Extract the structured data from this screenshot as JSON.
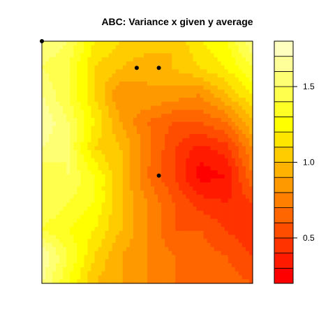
{
  "chart_data": {
    "type": "heatmap",
    "title": "ABC: Variance x given y average",
    "xlabel": "",
    "ylabel": "",
    "axes_labels_shown": false,
    "color_scale": {
      "palette": "heat (red to light yellow)",
      "range": [
        0.2,
        1.8
      ],
      "levels": [
        0.2,
        0.3,
        0.4,
        0.5,
        0.6,
        0.7,
        0.8,
        0.9,
        1.0,
        1.1,
        1.2,
        1.3,
        1.4,
        1.5,
        1.6,
        1.7,
        1.8
      ],
      "colors": [
        "#ff0000",
        "#ff1a00",
        "#ff3300",
        "#ff4d00",
        "#ff6600",
        "#ff8000",
        "#ff9900",
        "#ffb300",
        "#ffcc00",
        "#ffe600",
        "#ffff00",
        "#ffff26",
        "#ffff4d",
        "#ffff73",
        "#ffff99",
        "#ffffbf"
      ],
      "tick_labels": [
        "0.5",
        "1.0",
        "1.5"
      ],
      "tick_values": [
        0.5,
        1.0,
        1.5
      ]
    },
    "grid": {
      "rows_top_to_bottom": [
        [
          1.6,
          1.5,
          1.2,
          1.1,
          1.1,
          1.0,
          1.2,
          1.3,
          1.6
        ],
        [
          1.5,
          1.4,
          1.1,
          1.0,
          0.9,
          1.0,
          1.1,
          1.2,
          1.4
        ],
        [
          1.6,
          1.4,
          1.1,
          0.8,
          0.9,
          0.85,
          0.8,
          1.0,
          1.2
        ],
        [
          1.7,
          1.5,
          1.2,
          0.9,
          0.7,
          0.6,
          0.6,
          0.7,
          1.0
        ],
        [
          1.6,
          1.5,
          1.1,
          1.0,
          0.75,
          0.5,
          0.35,
          0.45,
          0.8
        ],
        [
          1.4,
          1.5,
          1.3,
          1.0,
          0.7,
          0.5,
          0.25,
          0.3,
          0.7
        ],
        [
          1.5,
          1.4,
          1.3,
          1.0,
          0.8,
          0.6,
          0.45,
          0.4,
          0.5
        ],
        [
          1.4,
          1.3,
          1.2,
          1.0,
          0.8,
          0.6,
          0.6,
          0.5,
          0.4
        ],
        [
          1.7,
          1.4,
          1.1,
          0.9,
          0.8,
          0.7,
          0.65,
          0.6,
          0.5
        ],
        [
          1.6,
          1.3,
          1.0,
          0.9,
          0.8,
          0.7,
          0.7,
          0.65,
          0.6
        ]
      ]
    },
    "markers": [
      {
        "x": 0.45,
        "y": 0.89
      },
      {
        "x": 0.555,
        "y": 0.89
      },
      {
        "x": 0.555,
        "y": 0.445
      },
      {
        "x": 0.0,
        "y": 1.0
      }
    ]
  }
}
